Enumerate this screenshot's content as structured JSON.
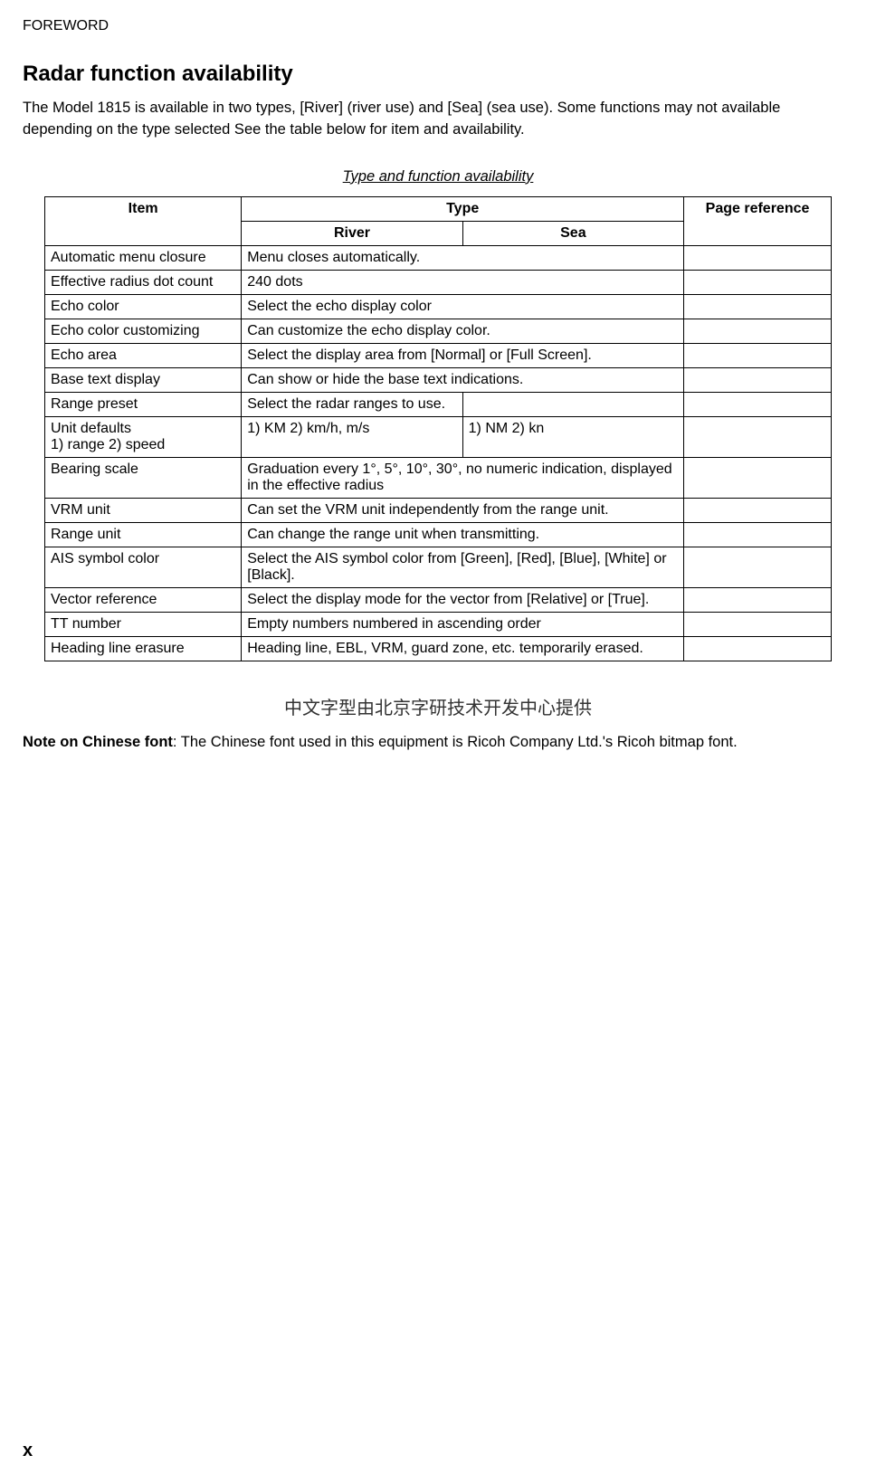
{
  "header": {
    "label": "FOREWORD"
  },
  "section": {
    "title": "Radar function availability"
  },
  "intro": "The Model 1815 is available in two types, [River] (river use) and [Sea] (sea use). Some functions may not available depending on the type selected See the table below for item and availability.",
  "table": {
    "caption": "Type and function availability",
    "headers": {
      "item": "Item",
      "type": "Type",
      "river": "River",
      "sea": "Sea",
      "page": "Page reference"
    },
    "rows": {
      "r1": {
        "item": "Automatic menu closure",
        "desc": "Menu closes automatically.",
        "page": ""
      },
      "r2": {
        "item": "Effective radius dot count",
        "desc": "240 dots",
        "page": ""
      },
      "r3": {
        "item": "Echo color",
        "desc": "Select the echo display color",
        "page": ""
      },
      "r4": {
        "item": "Echo color customizing",
        "desc": "Can customize the echo display color.",
        "page": ""
      },
      "r5": {
        "item": "Echo area",
        "desc": "Select the display area from [Normal] or [Full Screen].",
        "page": ""
      },
      "r6": {
        "item": "Base text display",
        "desc": "Can show or hide the base text indications.",
        "page": ""
      },
      "r7": {
        "item": "Range preset",
        "river": "Select the radar ranges to use.",
        "sea": "",
        "page": ""
      },
      "r8": {
        "item": "Unit defaults\n1) range 2) speed",
        "river": "1) KM 2) km/h,     m/s",
        "sea": "1) NM 2) kn",
        "page": ""
      },
      "r9": {
        "item": "Bearing scale",
        "desc": "Graduation every 1°, 5°, 10°, 30°, no numeric indication, displayed in the effective radius",
        "page": ""
      },
      "r10": {
        "item": "VRM unit",
        "desc": "Can set the VRM unit independently from the range unit.",
        "page": ""
      },
      "r11": {
        "item": "Range unit",
        "desc": "Can change the range unit when transmitting.",
        "page": ""
      },
      "r12": {
        "item": "AIS symbol color",
        "desc": "Select the AIS symbol color from [Green], [Red], [Blue], [White] or [Black].",
        "page": ""
      },
      "r13": {
        "item": "Vector reference",
        "desc": "Select the display mode for the vector from [Relative] or [True].",
        "page": ""
      },
      "r14": {
        "item": "TT number",
        "desc": "Empty numbers numbered in ascending order",
        "page": ""
      },
      "r15": {
        "item": "Heading line erasure",
        "desc": "Heading line, EBL, VRM, guard zone, etc. temporarily erased.",
        "page": ""
      }
    }
  },
  "chinese": "中文字型由北京字研技术开发中心提供",
  "note": {
    "bold": "Note on Chinese font",
    "rest": ": The Chinese font used in this equipment is Ricoh Company Ltd.'s Ricoh bitmap font."
  },
  "pageNumber": "x"
}
